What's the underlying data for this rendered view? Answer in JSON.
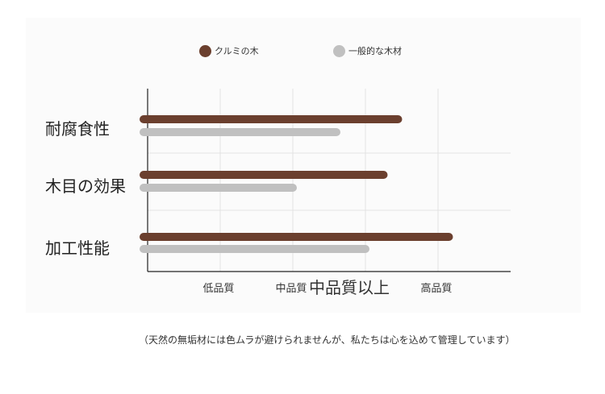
{
  "legend": [
    {
      "label": "クルミの木",
      "color": "#6b3f2e"
    },
    {
      "label": "一般的な木材",
      "color": "#c0c0c0"
    }
  ],
  "chart_data": {
    "type": "bar",
    "orientation": "horizontal",
    "categories": [
      "耐腐食性",
      "木目の効果",
      "加工性能"
    ],
    "x_ticks": [
      "低品質",
      "中品質",
      "中品質以上",
      "高品質"
    ],
    "xlim": [
      0,
      4
    ],
    "series": [
      {
        "name": "クルミの木",
        "color": "#6b3f2e",
        "values": [
          3.45,
          3.25,
          4.15
        ]
      },
      {
        "name": "一般的な木材",
        "color": "#c0c0c0",
        "values": [
          2.6,
          2.0,
          3.0
        ]
      }
    ],
    "grid": true,
    "legend_position": "top"
  },
  "footnote": "（天然の無垢材には色ムラが避けられませんが、私たちは心を込めて管理しています）"
}
